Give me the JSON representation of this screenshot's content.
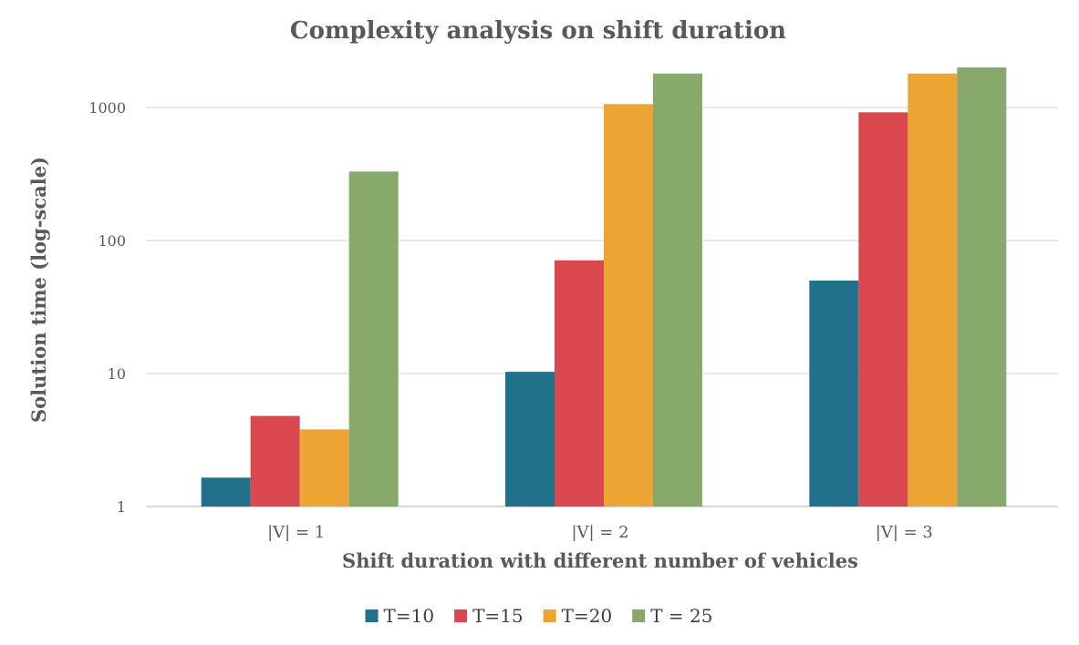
{
  "chart_data": {
    "type": "bar",
    "title": "Complexity analysis on shift duration",
    "xlabel": "Shift duration with different number of vehicles",
    "ylabel": "Solution time (log-scale)",
    "yscale": "log",
    "ylim": [
      1,
      2100
    ],
    "yticks": [
      1,
      10,
      100,
      1000
    ],
    "ytick_labels": [
      "1",
      "10",
      "100",
      "1000"
    ],
    "grid": true,
    "legend_position": "bottom",
    "categories": [
      "|V| = 1",
      "|V| = 2",
      "|V| = 3"
    ],
    "series": [
      {
        "name": "T=10",
        "color": "#21718a",
        "values": [
          1.65,
          10.3,
          50
        ]
      },
      {
        "name": "T=15",
        "color": "#d9484e",
        "values": [
          4.8,
          71,
          920
        ]
      },
      {
        "name": "T=20",
        "color": "#eca433",
        "values": [
          3.8,
          1060,
          1800
        ]
      },
      {
        "name": "T = 25",
        "color": "#87a96b",
        "values": [
          330,
          1800,
          2000
        ]
      }
    ]
  }
}
